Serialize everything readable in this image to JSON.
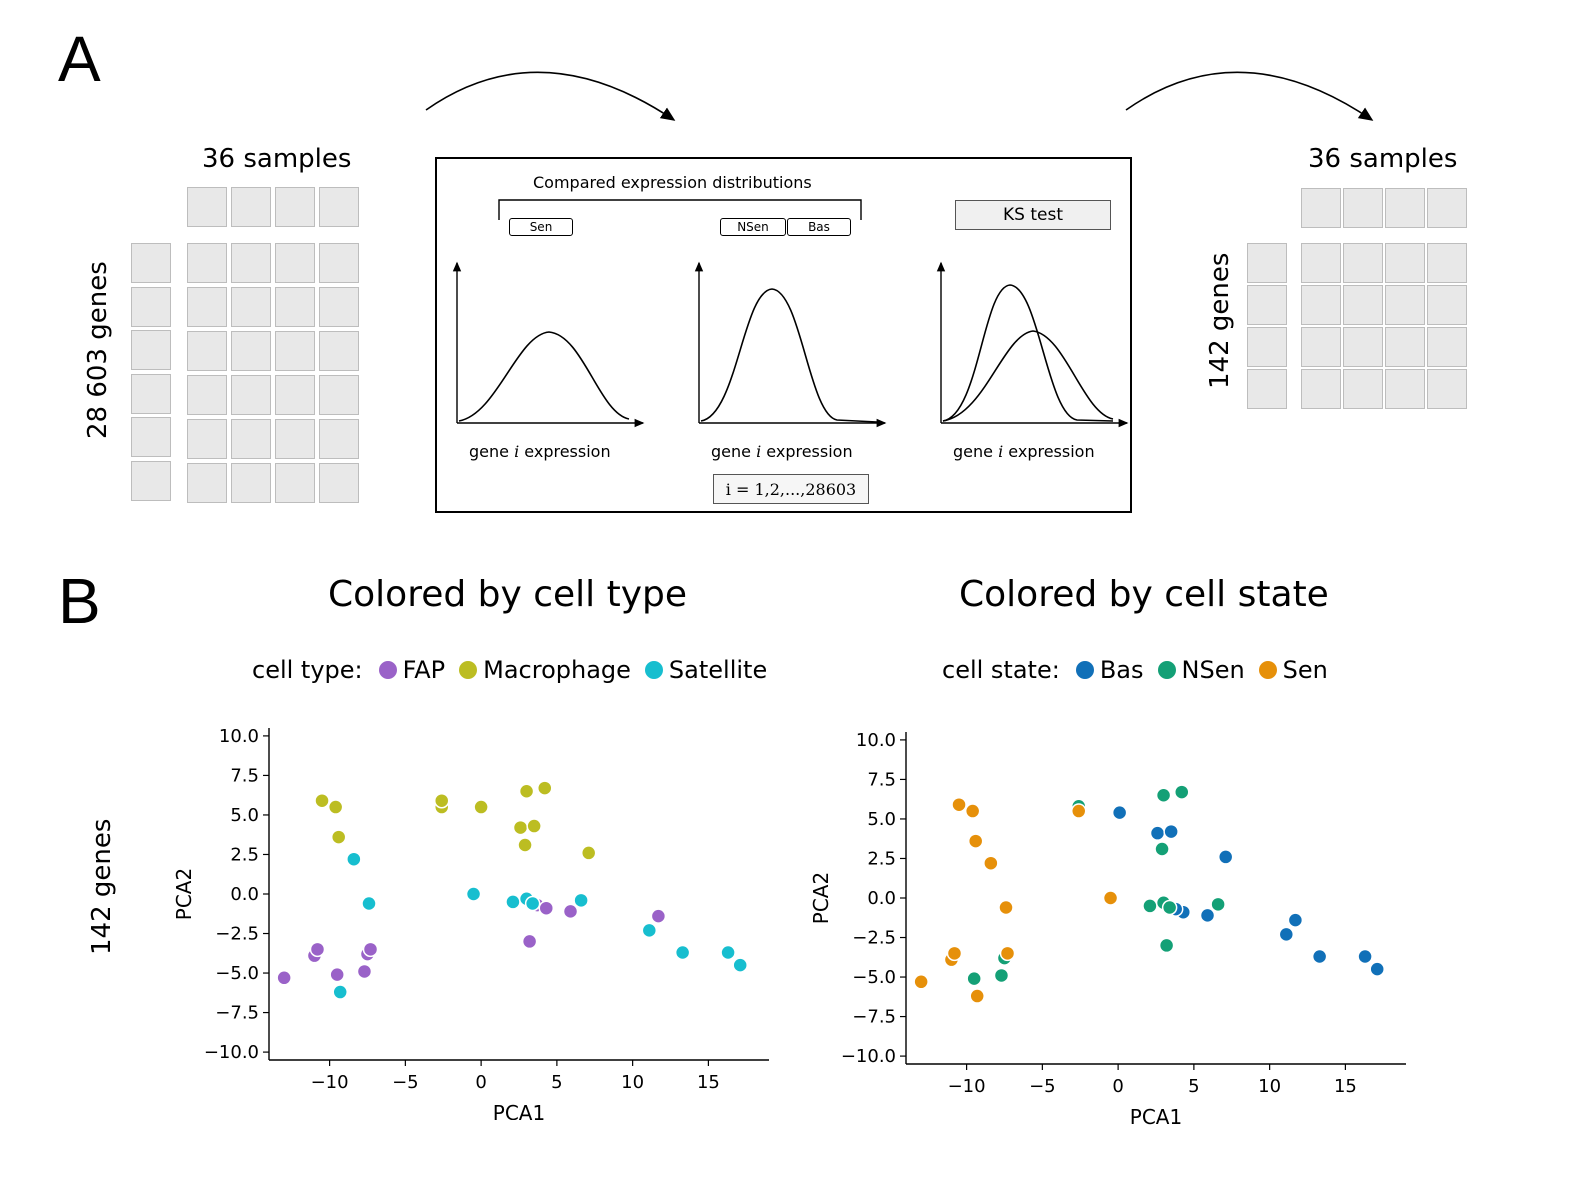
{
  "panel_a": {
    "letter": "A",
    "left_matrix": {
      "cols_label": "36 samples",
      "rows_label": "28 603 genes"
    },
    "right_matrix": {
      "cols_label": "36 samples",
      "rows_label": "142 genes"
    },
    "center": {
      "bracket_label": "Compared expression distributions",
      "tags": [
        {
          "label": "Sen",
          "color": "#f5b642"
        },
        {
          "label": "NSen",
          "color": "#a8d88a"
        },
        {
          "label": "Bas",
          "color": "#6aa8dc"
        }
      ],
      "ks_label": "KS test",
      "x_label_prefix": "gene ",
      "x_label_var": "i",
      "x_label_suffix": " expression",
      "index_label": "i = 1,2,...,28603"
    }
  },
  "panel_b": {
    "letter": "B",
    "side_label": "142 genes"
  },
  "chart_data": [
    {
      "type": "scatter",
      "title": "Colored by cell type",
      "legend_title": "cell type:",
      "xlabel": "PCA1",
      "ylabel": "PCA2",
      "xlim": [
        -14,
        19
      ],
      "ylim": [
        -10.5,
        10.5
      ],
      "xticks": [
        -10,
        -5,
        0,
        5,
        10,
        15
      ],
      "yticks": [
        10.0,
        7.5,
        5.0,
        2.5,
        0.0,
        -2.5,
        -5.0,
        -7.5,
        -10.0
      ],
      "xtick_labels": [
        "−10",
        "−5",
        "0",
        "5",
        "10",
        "15"
      ],
      "ytick_labels": [
        "10.0",
        "7.5",
        "5.0",
        "2.5",
        "0.0",
        "−2.5",
        "−5.0",
        "−7.5",
        "−10.0"
      ],
      "series": [
        {
          "name": "FAP",
          "color": "#9a62c8",
          "points": [
            [
              -13,
              -5.3
            ],
            [
              -11,
              -3.9
            ],
            [
              -10.8,
              -3.5
            ],
            [
              -9.5,
              -5.1
            ],
            [
              -7.7,
              -4.9
            ],
            [
              -7.5,
              -3.8
            ],
            [
              -7.3,
              -3.5
            ],
            [
              3.2,
              -3.0
            ],
            [
              3.7,
              -0.7
            ],
            [
              4.3,
              -0.9
            ],
            [
              5.9,
              -1.1
            ],
            [
              11.7,
              -1.4
            ]
          ]
        },
        {
          "name": "Macrophage",
          "color": "#bcbd22",
          "points": [
            [
              -10.5,
              5.9
            ],
            [
              -9.6,
              5.5
            ],
            [
              -9.4,
              3.6
            ],
            [
              -2.6,
              5.5
            ],
            [
              -2.6,
              5.9
            ],
            [
              0,
              5.5
            ],
            [
              2.6,
              4.2
            ],
            [
              2.9,
              3.1
            ],
            [
              3.0,
              6.5
            ],
            [
              3.5,
              4.3
            ],
            [
              4.2,
              6.7
            ],
            [
              7.1,
              2.6
            ]
          ]
        },
        {
          "name": "Satellite",
          "color": "#17becf",
          "points": [
            [
              -8.4,
              2.2
            ],
            [
              -7.4,
              -0.6
            ],
            [
              -9.3,
              -6.2
            ],
            [
              -0.5,
              0.0
            ],
            [
              2.1,
              -0.5
            ],
            [
              3.0,
              -0.3
            ],
            [
              3.4,
              -0.6
            ],
            [
              6.6,
              -0.4
            ],
            [
              11.1,
              -2.3
            ],
            [
              13.3,
              -3.7
            ],
            [
              16.3,
              -3.7
            ],
            [
              17.1,
              -4.5
            ]
          ]
        }
      ]
    },
    {
      "type": "scatter",
      "title": "Colored by cell state",
      "legend_title": "cell state:",
      "xlabel": "PCA1",
      "ylabel": "PCA2",
      "xlim": [
        -14,
        19
      ],
      "ylim": [
        -10.5,
        10.5
      ],
      "xticks": [
        -10,
        -5,
        0,
        5,
        10,
        15
      ],
      "yticks": [
        10.0,
        7.5,
        5.0,
        2.5,
        0.0,
        -2.5,
        -5.0,
        -7.5,
        -10.0
      ],
      "xtick_labels": [
        "−10",
        "−5",
        "0",
        "5",
        "10",
        "15"
      ],
      "ytick_labels": [
        "10.0",
        "7.5",
        "5.0",
        "2.5",
        "0.0",
        "−2.5",
        "−5.0",
        "−7.5",
        "−10.0"
      ],
      "series": [
        {
          "name": "Bas",
          "color": "#1170b8",
          "points": [
            [
              0.1,
              5.4
            ],
            [
              2.6,
              4.1
            ],
            [
              3.5,
              4.2
            ],
            [
              7.1,
              2.6
            ],
            [
              4.3,
              -0.9
            ],
            [
              5.9,
              -1.1
            ],
            [
              11.1,
              -2.3
            ],
            [
              11.7,
              -1.4
            ],
            [
              13.3,
              -3.7
            ],
            [
              16.3,
              -3.7
            ],
            [
              17.1,
              -4.5
            ],
            [
              3.8,
              -0.7
            ]
          ]
        },
        {
          "name": "NSen",
          "color": "#14a076",
          "points": [
            [
              -2.6,
              5.8
            ],
            [
              3.0,
              6.5
            ],
            [
              4.2,
              6.7
            ],
            [
              2.9,
              3.1
            ],
            [
              2.1,
              -0.5
            ],
            [
              3.0,
              -0.3
            ],
            [
              3.4,
              -0.6
            ],
            [
              3.2,
              -3.0
            ],
            [
              6.6,
              -0.4
            ],
            [
              -7.5,
              -3.8
            ],
            [
              -7.7,
              -4.9
            ],
            [
              -9.5,
              -5.1
            ]
          ]
        },
        {
          "name": "Sen",
          "color": "#e6900a",
          "points": [
            [
              -10.5,
              5.9
            ],
            [
              -9.6,
              5.5
            ],
            [
              -9.4,
              3.6
            ],
            [
              -8.4,
              2.2
            ],
            [
              -7.4,
              -0.6
            ],
            [
              -2.6,
              5.5
            ],
            [
              -0.5,
              0.0
            ],
            [
              -11,
              -3.9
            ],
            [
              -10.8,
              -3.5
            ],
            [
              -13,
              -5.3
            ],
            [
              -9.3,
              -6.2
            ],
            [
              -7.3,
              -3.5
            ]
          ]
        }
      ]
    }
  ]
}
